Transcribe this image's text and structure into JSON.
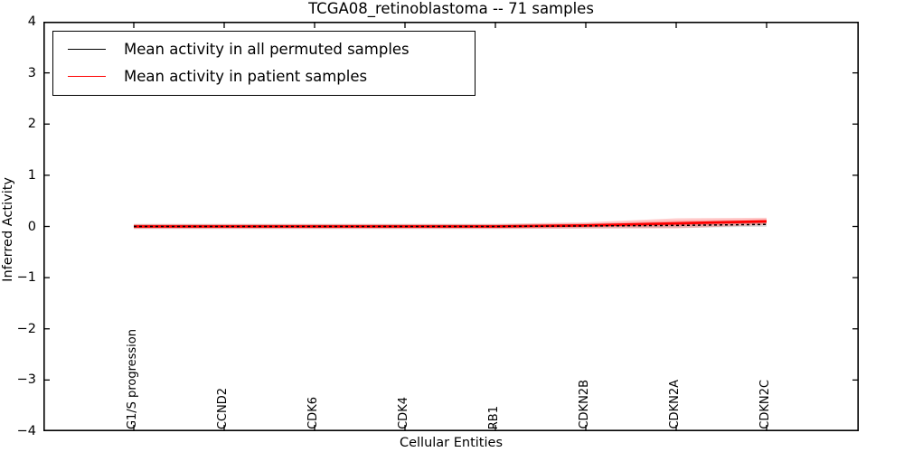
{
  "chart_data": {
    "type": "line",
    "title": "TCGA08_retinoblastoma -- 71 samples",
    "xlabel": "Cellular Entities",
    "ylabel": "Inferred Activity",
    "ylim": [
      -4,
      4
    ],
    "yticks": [
      4,
      3,
      2,
      1,
      0,
      -1,
      -2,
      -3,
      -4
    ],
    "ytick_labels": [
      "4",
      "3",
      "2",
      "1",
      "0",
      "−1",
      "−2",
      "−3",
      "−4"
    ],
    "categories": [
      "G1/S progression",
      "CCND2",
      "CDK6",
      "CDK4",
      "RB1",
      "CDKN2B",
      "CDKN2A",
      "CDKN2C"
    ],
    "grid": false,
    "legend_position": "upper left",
    "series": [
      {
        "name": "Mean activity in all permuted samples",
        "color": "#000000",
        "style": "dashed",
        "values": [
          0.0,
          0.0,
          0.0,
          0.0,
          0.0,
          0.01,
          0.02,
          0.04
        ],
        "band_halfwidth": [
          0.045,
          0.045,
          0.045,
          0.045,
          0.045,
          0.045,
          0.045,
          0.045
        ],
        "band_color": "rgba(120,120,120,0.28)"
      },
      {
        "name": "Mean activity in patient samples",
        "color": "#ff0000",
        "style": "solid",
        "values": [
          0.0,
          0.0,
          0.0,
          0.0,
          0.0,
          0.02,
          0.06,
          0.1
        ],
        "band_halfwidth": [
          0.05,
          0.05,
          0.05,
          0.05,
          0.05,
          0.06,
          0.1,
          0.07
        ],
        "band_color": "rgba(255,0,0,0.20)"
      }
    ]
  }
}
